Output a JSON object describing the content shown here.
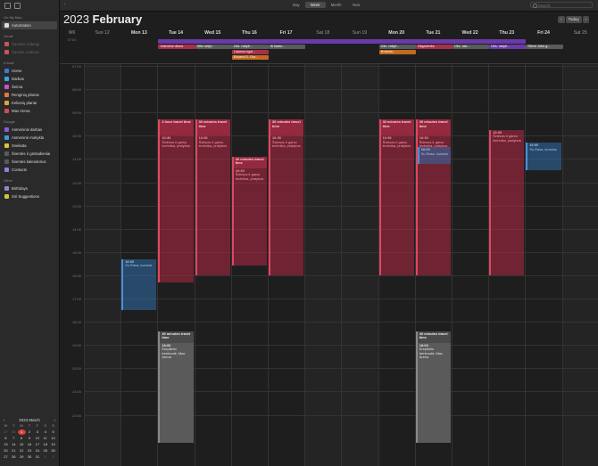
{
  "sidebar": {
    "section_onmymac": "On My Mac",
    "automation": "Automation",
    "section_gmail": "Gmail",
    "gmail_items": [
      "Šaunias ruduogi",
      "Šaunūs rudenys"
    ],
    "section_icloud": "iCloud",
    "icloud_items": [
      {
        "label": "Home",
        "color": "#3a7bd5"
      },
      {
        "label": "Darbas",
        "color": "#3aa3e0"
      },
      {
        "label": "Šeima",
        "color": "#c94fd1"
      },
      {
        "label": "Renginių planas",
        "color": "#e07a3a"
      },
      {
        "label": "Kelionių planai",
        "color": "#e0a33a"
      },
      {
        "label": "Max Arena",
        "color": "#d9455f"
      }
    ],
    "section_google": "Google",
    "google_items": [
      {
        "label": "Asmeninis darbas",
        "color": "#8a5bd8"
      },
      {
        "label": "Asmeninė mokykla",
        "color": "#3a9be0"
      },
      {
        "label": "Sveikata",
        "color": "#e0c23a"
      },
      {
        "label": "Šventės ir gimtadieniai",
        "color": "#5a5a5a"
      },
      {
        "label": "Šventės kalendorius",
        "color": "#5a5a5a"
      },
      {
        "label": "Contacts",
        "color": "#9b7be0"
      }
    ],
    "section_other": "Other",
    "other_items": [
      {
        "label": "Birthdays",
        "color": "#8a8ad8"
      },
      {
        "label": "Siri Suggestions",
        "color": "#d8c23a"
      }
    ]
  },
  "mini_calendar": {
    "title": "2023 March",
    "dow": [
      "M",
      "T",
      "W",
      "T",
      "F",
      "S",
      "S"
    ],
    "days": [
      [
        "27",
        "28",
        "1",
        "2",
        "3",
        "4",
        "5"
      ],
      [
        "6",
        "7",
        "8",
        "9",
        "10",
        "11",
        "12"
      ],
      [
        "13",
        "14",
        "15",
        "16",
        "17",
        "18",
        "19"
      ],
      [
        "20",
        "21",
        "22",
        "23",
        "24",
        "25",
        "26"
      ],
      [
        "27",
        "28",
        "29",
        "30",
        "31",
        "1",
        "2"
      ]
    ],
    "today_day": "1"
  },
  "toolbar": {
    "views": [
      "Day",
      "Week",
      "Month",
      "Year"
    ],
    "active_view": "Week",
    "search_placeholder": "Search"
  },
  "header": {
    "year": "2023",
    "month": "February",
    "today_button": "Today",
    "prev": "‹",
    "next": "›",
    "week_label": "W6",
    "days": [
      {
        "label": "Sun 12",
        "weekend": true
      },
      {
        "label": "Mon 13",
        "weekend": false
      },
      {
        "label": "Tue 14",
        "weekend": false
      },
      {
        "label": "Wed 15",
        "weekend": false
      },
      {
        "label": "Thu 16",
        "weekend": false
      },
      {
        "label": "Fri 17",
        "weekend": false
      },
      {
        "label": "Sat 18",
        "weekend": true
      },
      {
        "label": "Sun 19",
        "weekend": true
      },
      {
        "label": "Mon 20",
        "weekend": false
      },
      {
        "label": "Tue 21",
        "weekend": false
      },
      {
        "label": "Wed 22",
        "weekend": false
      },
      {
        "label": "Thu 23",
        "weekend": false
      },
      {
        "label": "Fri 24",
        "weekend": false
      },
      {
        "label": "Sat 25",
        "weekend": true
      }
    ]
  },
  "allday": {
    "time_label": "07:00",
    "labels": [
      "Valentine diena",
      "Wiki rašyt...",
      "Užs. rašyti...",
      "Iš kanto...",
      "Liaunos egzl...",
      "Edvard G. Gur...",
      "Užs. rašyti...",
      "Iš kanto...",
      "Užs. raš...",
      "Užgavėnės",
      "Užs. rašyti...",
      "Iš kanto...",
      "Steve Jobs g..."
    ]
  },
  "time_labels": [
    "07:00",
    "08:00",
    "09:00",
    "10:00",
    "11:00",
    "12:00",
    "13:00",
    "14:00",
    "15:00",
    "16:00",
    "17:00",
    "18:00",
    "19:00",
    "20:00",
    "21:00",
    "22:00"
  ],
  "events": {
    "travel_30": "30 minutes travel time",
    "travel_3h": "3 hour travel time",
    "red_title": "10:30",
    "red_body": "Šviesos ir garso technika, pratybos",
    "blue_title": "16:00",
    "blue_body": "Su Rasa, kursinis",
    "gray_title": "18:00",
    "gray_body": "Krepšinio treniruotė, Max Arena"
  }
}
